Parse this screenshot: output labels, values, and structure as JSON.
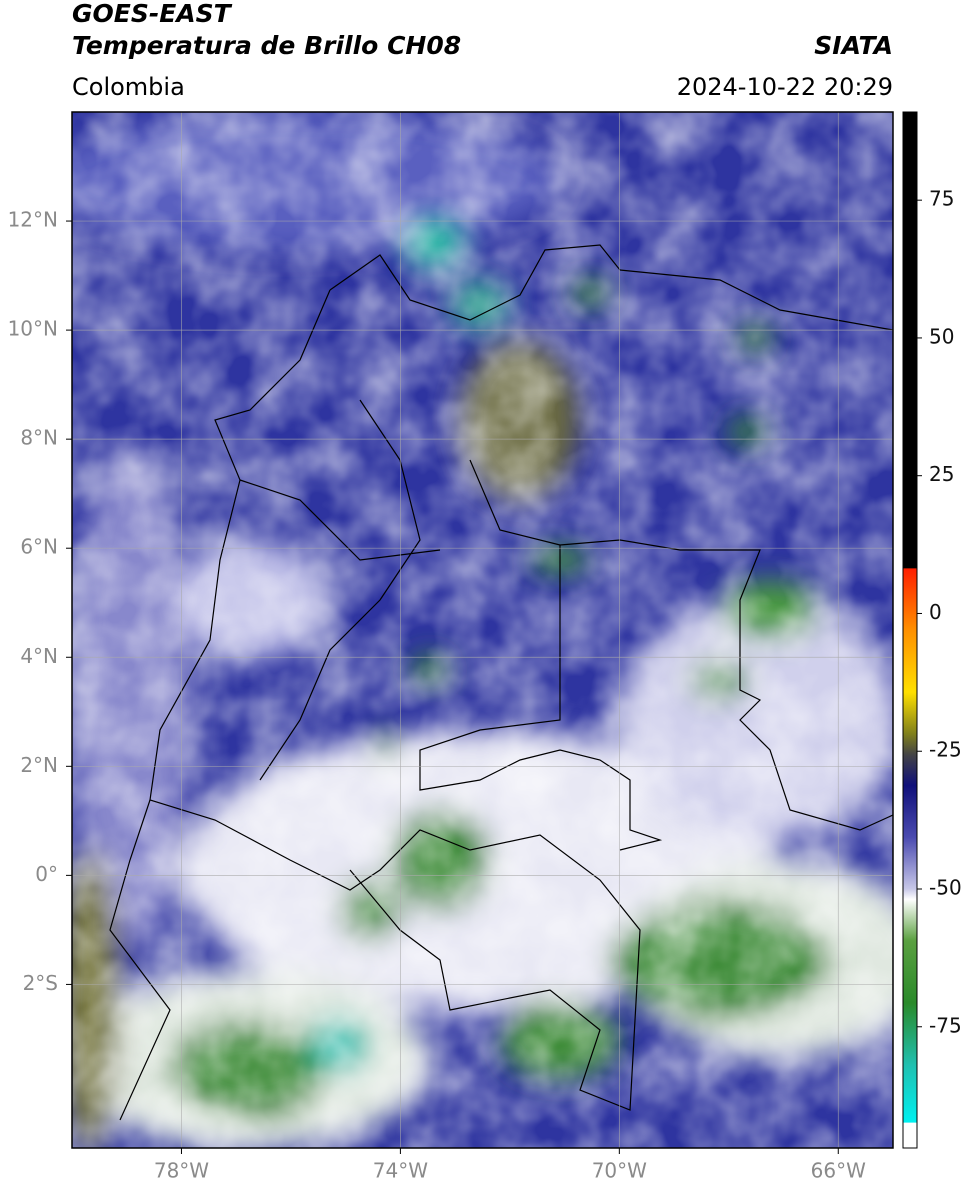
{
  "header": {
    "satellite": "GOES-EAST",
    "product": "Temperatura de Brillo CH08",
    "source": "SIATA",
    "region": "Colombia",
    "datetime": "2024-10-22 20:29"
  },
  "map": {
    "xlim": [
      -80,
      -65
    ],
    "ylim": [
      -5,
      14
    ],
    "xticks": [
      {
        "value": -78,
        "label": "78°W"
      },
      {
        "value": -74,
        "label": "74°W"
      },
      {
        "value": -70,
        "label": "70°W"
      },
      {
        "value": -66,
        "label": "66°W"
      }
    ],
    "yticks": [
      {
        "value": 12,
        "label": "12°N"
      },
      {
        "value": 10,
        "label": "10°N"
      },
      {
        "value": 8,
        "label": "8°N"
      },
      {
        "value": 6,
        "label": "6°N"
      },
      {
        "value": 4,
        "label": "4°N"
      },
      {
        "value": 2,
        "label": "2°N"
      },
      {
        "value": 0,
        "label": "0°"
      },
      {
        "value": -2,
        "label": "2°S"
      }
    ],
    "grid": true
  },
  "colorbar": {
    "clim": [
      -97,
      91
    ],
    "ticks": [
      75,
      50,
      25,
      0,
      -25,
      -50,
      -75
    ]
  }
}
